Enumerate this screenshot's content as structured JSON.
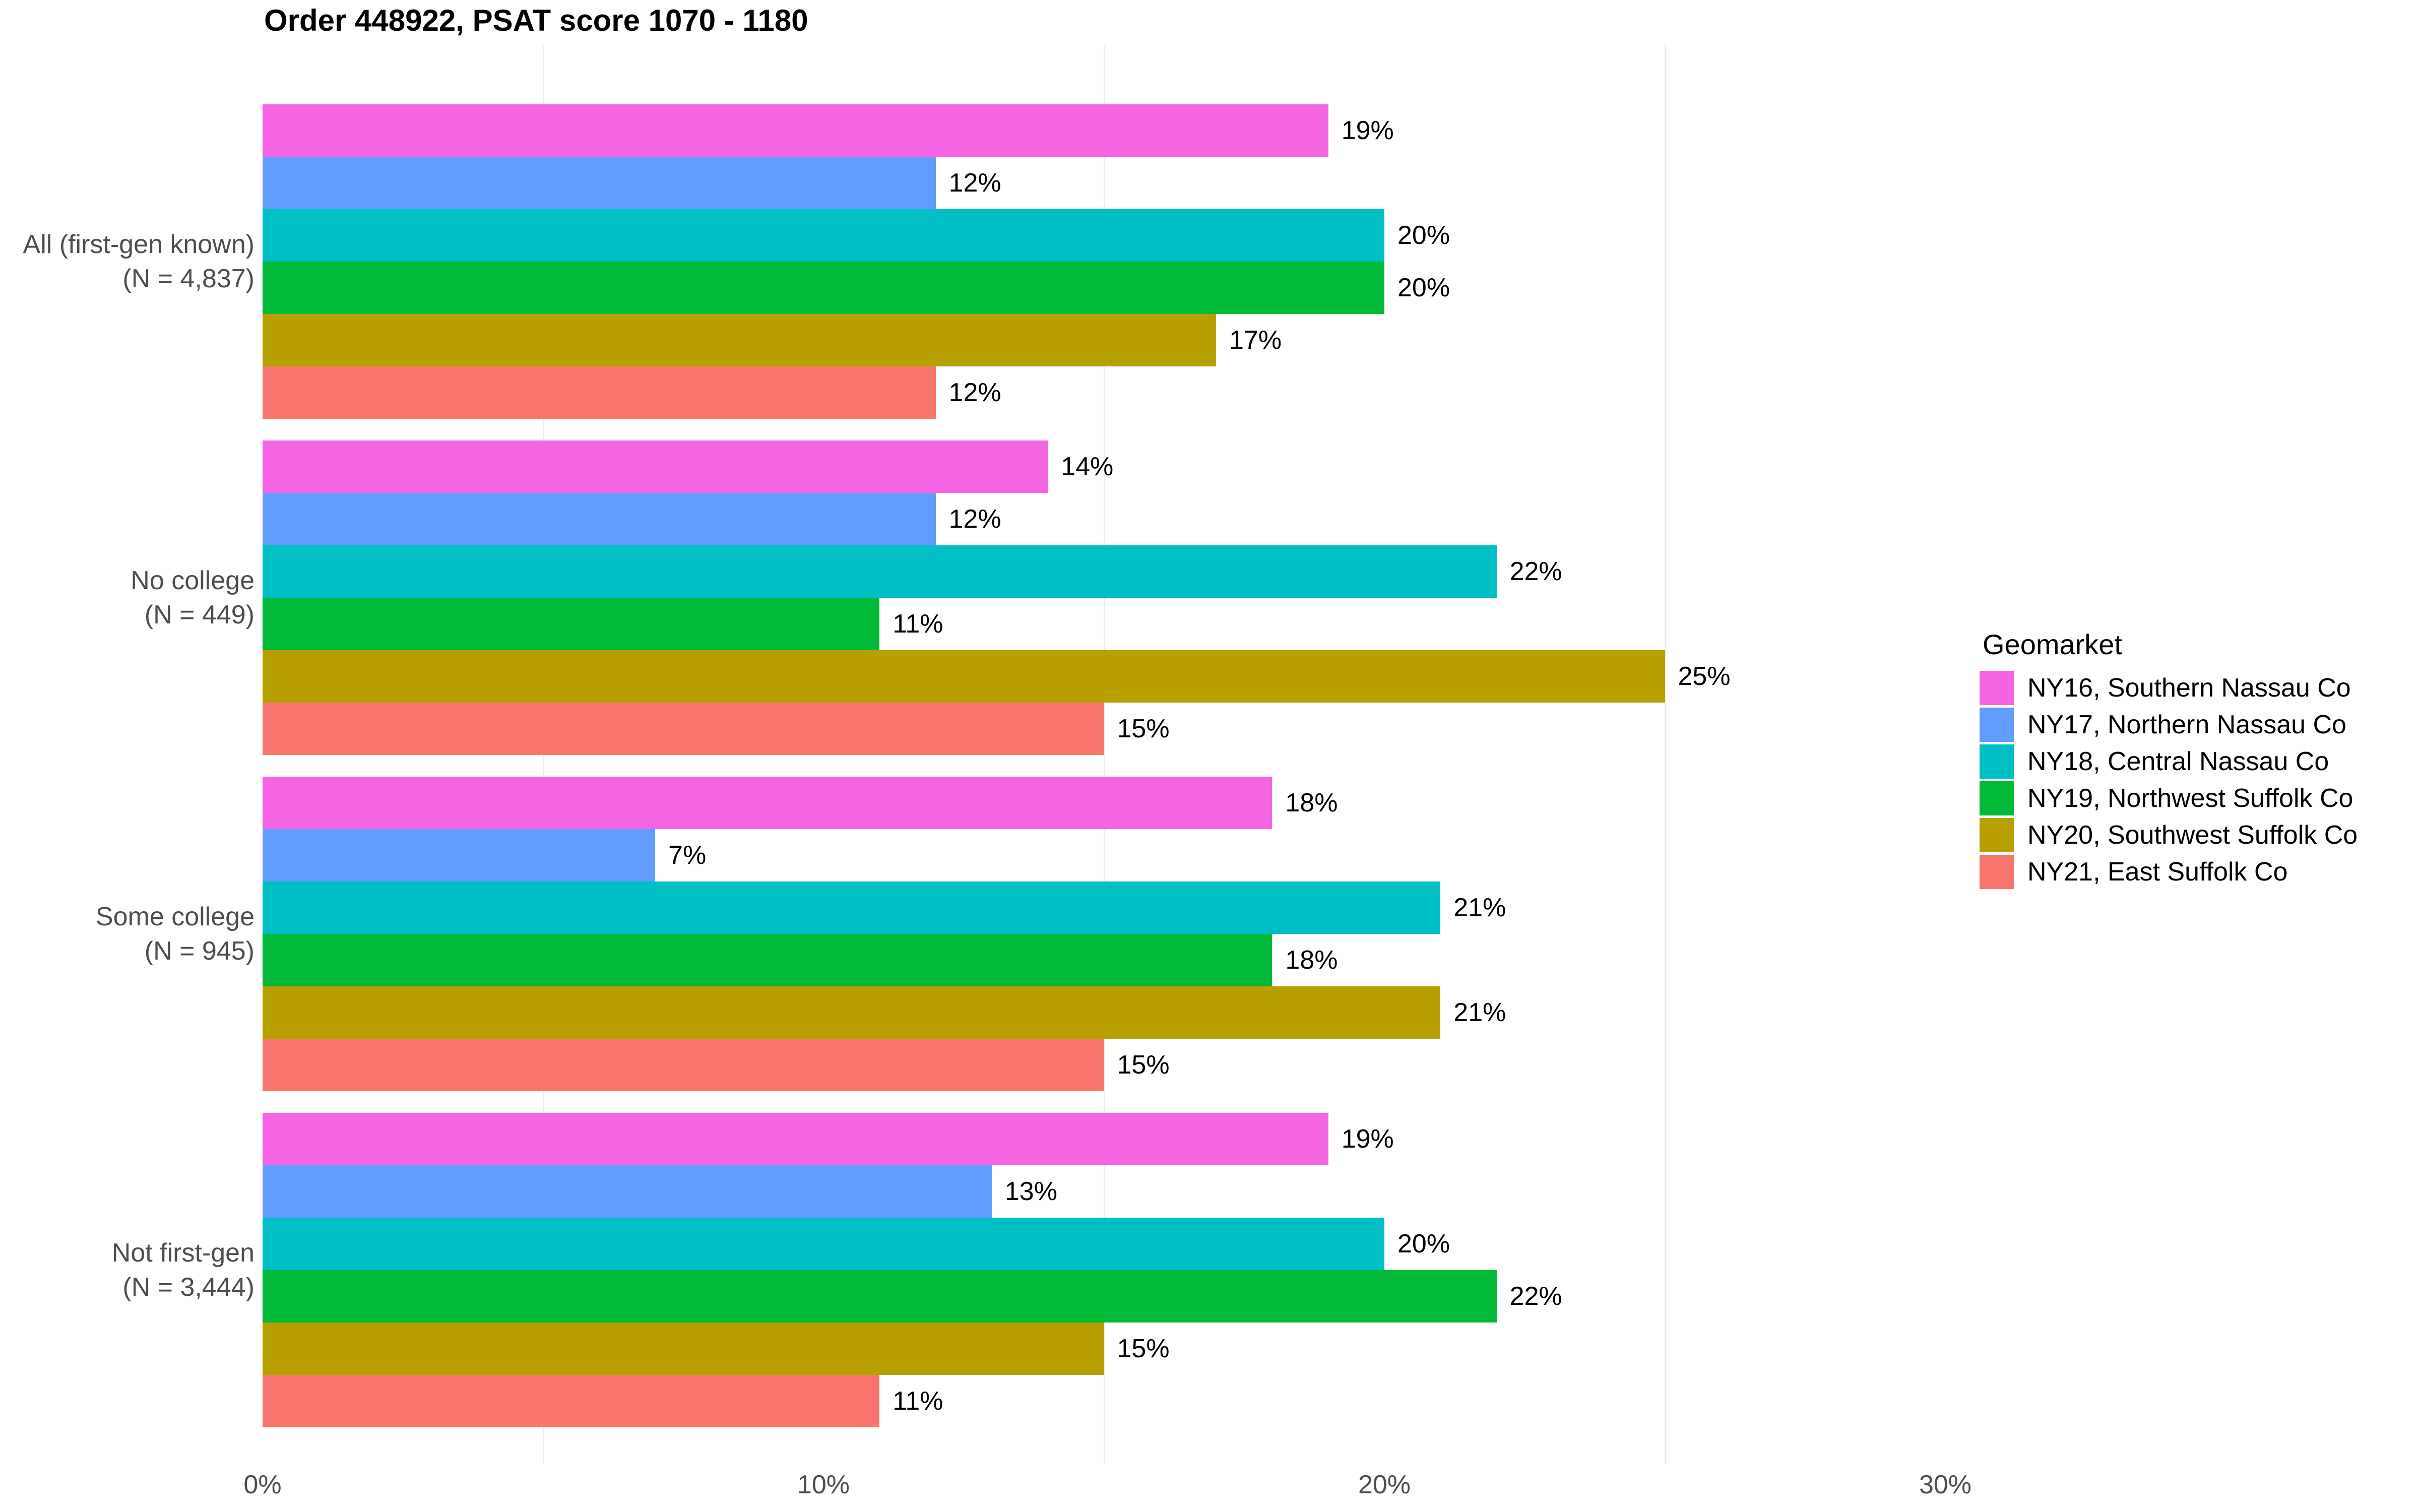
{
  "chart_data": {
    "type": "bar",
    "orientation": "horizontal",
    "title": "Order 448922, PSAT score 1070 - 1180",
    "legend_title": "Geomarket",
    "legend_position": "right",
    "xlim": [
      0,
      30
    ],
    "x_tick_labels": [
      "0%",
      "10%",
      "20%",
      "30%"
    ],
    "x_tick_values": [
      0,
      10,
      20,
      30
    ],
    "minor_gridlines": [
      5,
      15,
      25
    ],
    "grid": "vertical minor gridlines only",
    "value_suffix": "%",
    "bar_labels": "outside-right",
    "categories": [
      {
        "label": "All (first-gen known)",
        "sub_label": "(N = 4,837)"
      },
      {
        "label": "No college",
        "sub_label": "(N = 449)"
      },
      {
        "label": "Some college",
        "sub_label": "(N = 945)"
      },
      {
        "label": "Not first-gen",
        "sub_label": "(N = 3,444)"
      }
    ],
    "series": [
      {
        "name": "NY16, Southern Nassau Co",
        "color": "#F564E3",
        "values": [
          19,
          14,
          18,
          19
        ]
      },
      {
        "name": "NY17, Northern Nassau Co",
        "color": "#619CFF",
        "values": [
          12,
          12,
          7,
          13
        ]
      },
      {
        "name": "NY18, Central Nassau Co",
        "color": "#00BFC4",
        "values": [
          20,
          22,
          21,
          20
        ]
      },
      {
        "name": "NY19, Northwest Suffolk Co",
        "color": "#00BA38",
        "values": [
          20,
          11,
          18,
          22
        ]
      },
      {
        "name": "NY20, Southwest Suffolk Co",
        "color": "#B79F00",
        "values": [
          17,
          25,
          21,
          15
        ]
      },
      {
        "name": "NY21, East Suffolk Co",
        "color": "#F8766D",
        "values": [
          12,
          15,
          15,
          11
        ]
      }
    ]
  },
  "colors": {
    "background": "#FFFFFF",
    "gridline": "#EBEBEB",
    "axis_text": "#4D4D4D",
    "title_text": "#000000",
    "value_label_text": "#000000"
  }
}
